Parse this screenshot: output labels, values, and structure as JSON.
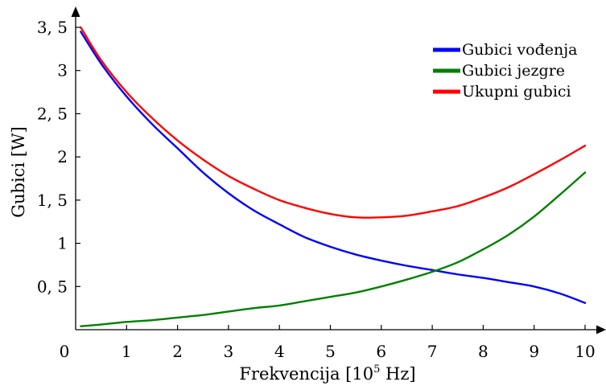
{
  "chart_data": {
    "type": "line",
    "title": "",
    "xlabel": "Frekvencija [10",
    "xlabel_superscript": "5",
    "xlabel_suffix": " Hz]",
    "ylabel": "Gubici [W]",
    "xlim": [
      0,
      10
    ],
    "ylim": [
      0,
      3.5
    ],
    "x_ticks": [
      {
        "value": 0,
        "label": "0"
      },
      {
        "value": 1,
        "label": "1"
      },
      {
        "value": 2,
        "label": "2"
      },
      {
        "value": 3,
        "label": "3"
      },
      {
        "value": 4,
        "label": "4"
      },
      {
        "value": 5,
        "label": "5"
      },
      {
        "value": 6,
        "label": "6"
      },
      {
        "value": 7,
        "label": "7"
      },
      {
        "value": 8,
        "label": "8"
      },
      {
        "value": 9,
        "label": "9"
      },
      {
        "value": 10,
        "label": "10"
      }
    ],
    "y_ticks": [
      {
        "value": 0.5,
        "label": "0, 5"
      },
      {
        "value": 1,
        "label": "1"
      },
      {
        "value": 1.5,
        "label": "1, 5"
      },
      {
        "value": 2,
        "label": "2"
      },
      {
        "value": 2.5,
        "label": "2, 5"
      },
      {
        "value": 3,
        "label": "3"
      },
      {
        "value": 3.5,
        "label": "3, 5"
      }
    ],
    "grid": false,
    "legend_position": "top-right",
    "x": [
      0.1,
      0.5,
      1,
      1.5,
      2,
      2.5,
      3,
      3.5,
      4,
      4.5,
      5,
      5.5,
      6,
      6.5,
      7,
      7.5,
      8,
      8.5,
      9,
      9.5,
      10
    ],
    "series": [
      {
        "name": "Gubici vođenja",
        "color": "#0000ff",
        "values": [
          3.45,
          3.08,
          2.7,
          2.38,
          2.1,
          1.82,
          1.58,
          1.38,
          1.22,
          1.07,
          0.96,
          0.87,
          0.8,
          0.74,
          0.69,
          0.64,
          0.6,
          0.55,
          0.5,
          0.42,
          0.31
        ]
      },
      {
        "name": "Gubici jezgre",
        "color": "#008000",
        "values": [
          0.04,
          0.06,
          0.09,
          0.11,
          0.14,
          0.17,
          0.21,
          0.25,
          0.28,
          0.33,
          0.38,
          0.43,
          0.5,
          0.58,
          0.67,
          0.78,
          0.93,
          1.1,
          1.31,
          1.56,
          1.82
        ]
      },
      {
        "name": "Ukupni gubici",
        "color": "#ff0000",
        "values": [
          3.5,
          3.12,
          2.75,
          2.45,
          2.19,
          1.97,
          1.78,
          1.63,
          1.5,
          1.41,
          1.34,
          1.3,
          1.3,
          1.32,
          1.37,
          1.43,
          1.53,
          1.65,
          1.8,
          1.96,
          2.13
        ]
      }
    ]
  }
}
